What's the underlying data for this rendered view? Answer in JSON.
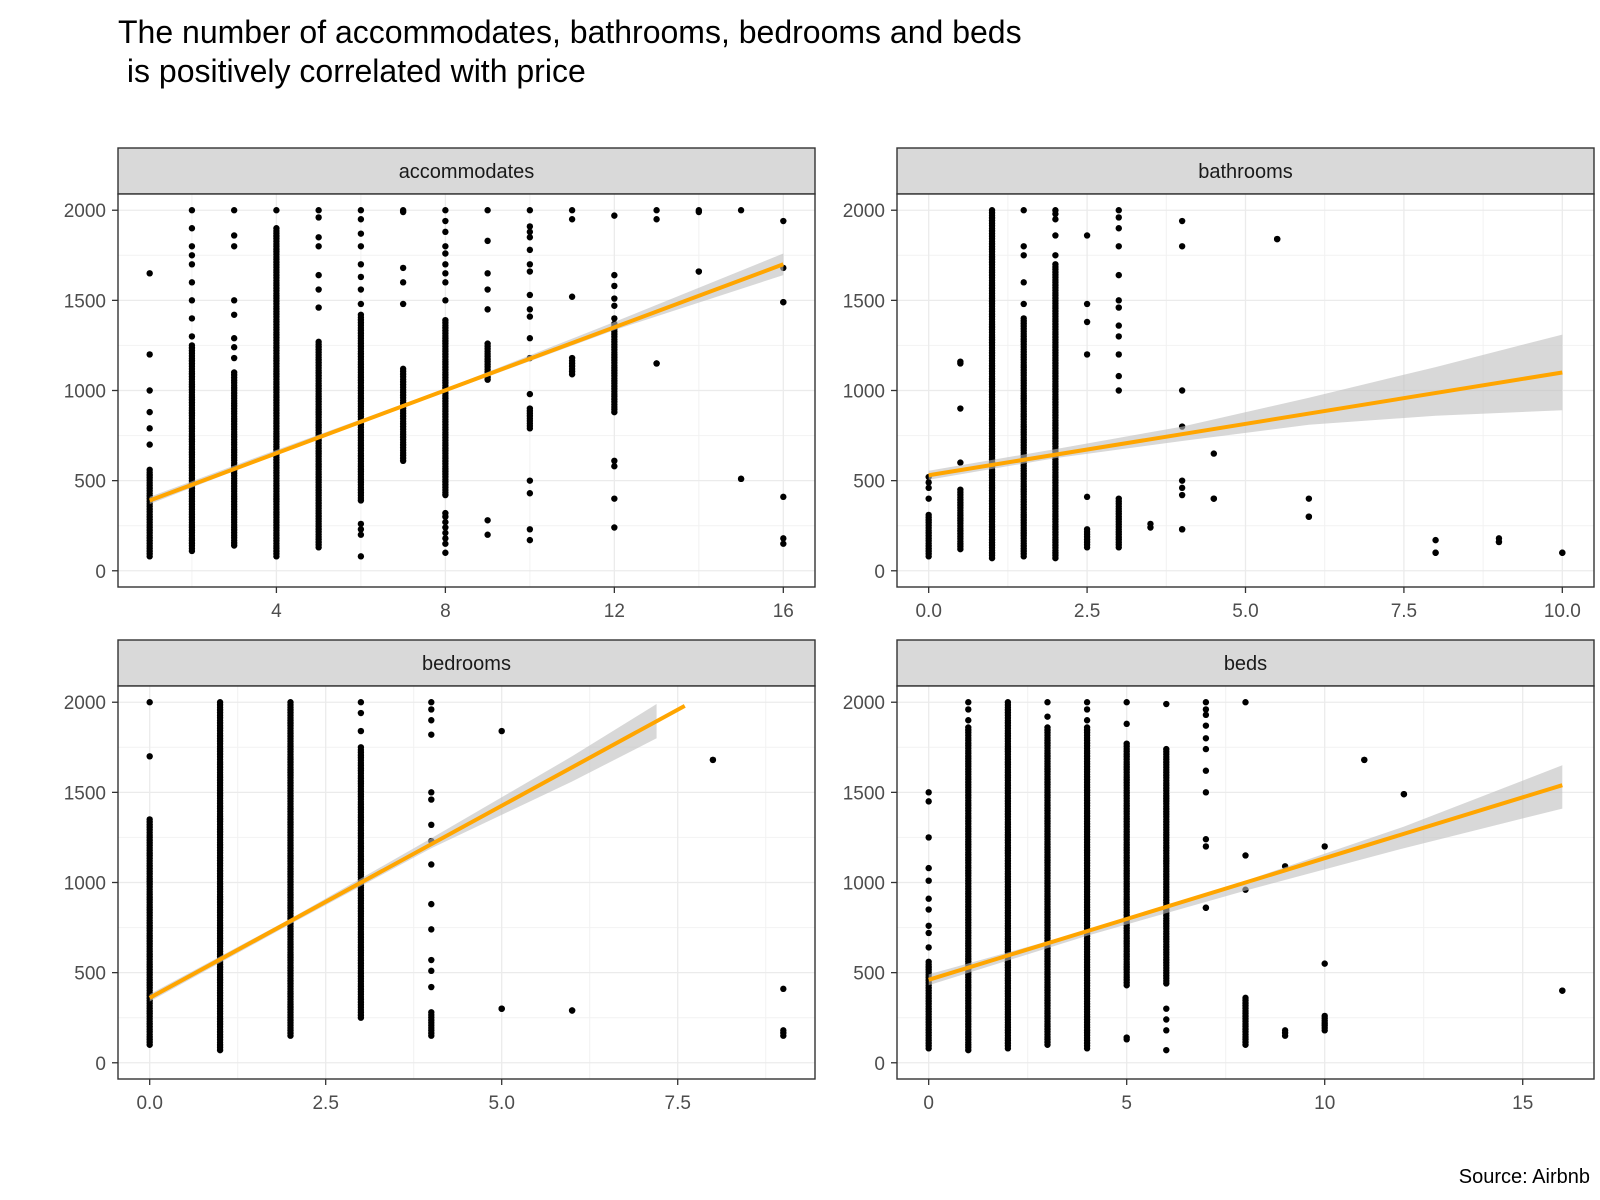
{
  "chart_data": {
    "type": "scatter",
    "title_line1": "The number of accommodates, bathrooms, bedrooms and beds",
    "title_line2": " is positively correlated with price",
    "caption": "Source: Airbnb",
    "ylim": [
      0,
      2000
    ],
    "y_ticks": [
      0,
      500,
      1000,
      1500,
      2000
    ],
    "grid": "on",
    "point_color": "#000000",
    "fit_color": "#FFA500",
    "band_color": "#BEBEBE",
    "strip_color": "#D9D9D9",
    "panels": [
      {
        "facet": "accommodates",
        "xlim": [
          0.25,
          16.75
        ],
        "x_ticks": [
          4,
          8,
          12,
          16
        ],
        "x_tick_labels": [
          "4",
          "8",
          "12",
          "16"
        ],
        "fit": {
          "x": [
            1,
            16
          ],
          "y": [
            390,
            1700
          ]
        },
        "band": {
          "x": [
            1,
            4,
            8,
            12,
            16
          ],
          "upper": [
            410,
            670,
            1010,
            1380,
            1760
          ],
          "lower": [
            370,
            645,
            990,
            1335,
            1640
          ]
        },
        "columns": [
          {
            "x": 1,
            "from": 80,
            "to": 560,
            "extra": [
              700,
              790,
              880,
              1000,
              1200,
              1650
            ]
          },
          {
            "x": 2,
            "from": 110,
            "to": 1250,
            "extra": [
              1300,
              1400,
              1500,
              1600,
              1700,
              1750,
              1800,
              1900,
              2000
            ]
          },
          {
            "x": 3,
            "from": 140,
            "to": 1100,
            "extra": [
              1180,
              1240,
              1290,
              1420,
              1500,
              1800,
              1860,
              2000
            ]
          },
          {
            "x": 4,
            "from": 80,
            "to": 1900,
            "extra": [
              2000
            ]
          },
          {
            "x": 5,
            "from": 130,
            "to": 1270,
            "extra": [
              1460,
              1560,
              1640,
              1800,
              1850,
              1960,
              2000
            ]
          },
          {
            "x": 6,
            "from": 390,
            "to": 1420,
            "extra": [
              80,
              200,
              230,
              260,
              1480,
              1560,
              1630,
              1700,
              1800,
              1870,
              1950,
              2000
            ]
          },
          {
            "x": 7,
            "from": 610,
            "to": 1120,
            "extra": [
              1480,
              1600,
              1680,
              1990,
              2000
            ]
          },
          {
            "x": 8,
            "from": 420,
            "to": 1390,
            "extra": [
              100,
              150,
              180,
              210,
              240,
              270,
              300,
              320,
              1500,
              1600,
              1650,
              1700,
              1760,
              1800,
              1880,
              1940,
              2000
            ]
          },
          {
            "x": 9,
            "from": 1060,
            "to": 1260,
            "extra": [
              200,
              280,
              1450,
              1560,
              1650,
              1830,
              2000
            ]
          },
          {
            "x": 10,
            "from": 790,
            "to": 900,
            "extra": [
              170,
              230,
              430,
              500,
              980,
              1180,
              1290,
              1410,
              1450,
              1530,
              1660,
              1700,
              1780,
              1850,
              1880,
              1910,
              2000
            ]
          },
          {
            "x": 11,
            "from": 1090,
            "to": 1180,
            "extra": [
              1520,
              1950,
              2000
            ]
          },
          {
            "x": 12,
            "from": 880,
            "to": 1370,
            "extra": [
              240,
              400,
              580,
              610,
              1400,
              1470,
              1510,
              1580,
              1640,
              1970
            ]
          },
          {
            "x": 13,
            "from": 1150,
            "to": 1150,
            "extra": [
              1950,
              2000
            ]
          },
          {
            "x": 14,
            "from": 1660,
            "to": 1660,
            "extra": [
              1990,
              2000
            ]
          },
          {
            "x": 15,
            "from": 510,
            "to": 510,
            "extra": [
              2000
            ]
          },
          {
            "x": 16,
            "from": 1490,
            "to": 1490,
            "extra": [
              150,
              180,
              410,
              1680,
              1940
            ]
          }
        ]
      },
      {
        "facet": "bathrooms",
        "xlim": [
          -0.5,
          10.5
        ],
        "x_ticks": [
          0,
          2.5,
          5,
          7.5,
          10
        ],
        "x_tick_labels": [
          "0.0",
          "2.5",
          "5.0",
          "7.5",
          "10.0"
        ],
        "fit": {
          "x": [
            0,
            10
          ],
          "y": [
            530,
            1100
          ]
        },
        "band": {
          "x": [
            0,
            2,
            4,
            6,
            8,
            10
          ],
          "upper": [
            555,
            675,
            800,
            960,
            1130,
            1310
          ],
          "lower": [
            505,
            625,
            720,
            810,
            860,
            890
          ]
        },
        "columns": [
          {
            "x": 0,
            "from": 80,
            "to": 310,
            "extra": [
              400,
              460,
              490,
              520
            ]
          },
          {
            "x": 0.5,
            "from": 120,
            "to": 450,
            "extra": [
              600,
              900,
              1150,
              1160
            ]
          },
          {
            "x": 1,
            "from": 70,
            "to": 2000,
            "extra": []
          },
          {
            "x": 1.5,
            "from": 80,
            "to": 1400,
            "extra": [
              1480,
              1600,
              1750,
              1800,
              2000
            ]
          },
          {
            "x": 2,
            "from": 70,
            "to": 1700,
            "extra": [
              1750,
              1860,
              1950,
              1980,
              2000
            ]
          },
          {
            "x": 2.5,
            "from": 130,
            "to": 230,
            "extra": [
              410,
              1200,
              1380,
              1480,
              1860
            ]
          },
          {
            "x": 3,
            "from": 130,
            "to": 400,
            "extra": [
              1000,
              1080,
              1200,
              1300,
              1360,
              1460,
              1500,
              1640,
              1800,
              1900,
              1960,
              2000
            ]
          },
          {
            "x": 3.5,
            "from": 240,
            "to": 260,
            "extra": []
          },
          {
            "x": 4,
            "from": 230,
            "to": 230,
            "extra": [
              420,
              460,
              500,
              800,
              1000,
              1800,
              1940
            ]
          },
          {
            "x": 4.5,
            "from": 400,
            "to": 400,
            "extra": [
              650
            ]
          },
          {
            "x": 5.5,
            "from": 1840,
            "to": 1840,
            "extra": []
          },
          {
            "x": 6,
            "from": 300,
            "to": 300,
            "extra": [
              400
            ]
          },
          {
            "x": 8,
            "from": 100,
            "to": 100,
            "extra": [
              170
            ]
          },
          {
            "x": 9,
            "from": 160,
            "to": 160,
            "extra": [
              180
            ]
          },
          {
            "x": 10,
            "from": 100,
            "to": 100,
            "extra": []
          }
        ]
      },
      {
        "facet": "bedrooms",
        "xlim": [
          -0.45,
          9.45
        ],
        "x_ticks": [
          0,
          2.5,
          5,
          7.5
        ],
        "x_tick_labels": [
          "0.0",
          "2.5",
          "5.0",
          "7.5"
        ],
        "fit": {
          "x": [
            0,
            7.6
          ],
          "y": [
            360,
            1980
          ]
        },
        "band": {
          "x": [
            0,
            2,
            4,
            6,
            7.2
          ],
          "upper": [
            380,
            800,
            1245,
            1700,
            1990
          ],
          "lower": [
            340,
            770,
            1190,
            1560,
            1800
          ]
        },
        "columns": [
          {
            "x": 0,
            "from": 100,
            "to": 1350,
            "extra": [
              1700,
              2000
            ]
          },
          {
            "x": 1,
            "from": 70,
            "to": 2000,
            "extra": []
          },
          {
            "x": 2,
            "from": 150,
            "to": 2000,
            "extra": []
          },
          {
            "x": 3,
            "from": 250,
            "to": 1750,
            "extra": [
              1840,
              1940,
              2000
            ]
          },
          {
            "x": 4,
            "from": 150,
            "to": 280,
            "extra": [
              420,
              510,
              570,
              740,
              880,
              1100,
              1230,
              1320,
              1460,
              1500,
              1820,
              1900,
              1960,
              2000
            ]
          },
          {
            "x": 5,
            "from": 300,
            "to": 300,
            "extra": [
              1840
            ]
          },
          {
            "x": 6,
            "from": 290,
            "to": 290,
            "extra": []
          },
          {
            "x": 8,
            "from": 1680,
            "to": 1680,
            "extra": []
          },
          {
            "x": 9,
            "from": 150,
            "to": 180,
            "extra": [
              410
            ]
          }
        ]
      },
      {
        "facet": "beds",
        "xlim": [
          -0.8,
          16.8
        ],
        "x_ticks": [
          0,
          5,
          10,
          15
        ],
        "x_tick_labels": [
          "0",
          "5",
          "10",
          "15"
        ],
        "fit": {
          "x": [
            0,
            16
          ],
          "y": [
            460,
            1540
          ]
        },
        "band": {
          "x": [
            0,
            4,
            8,
            12,
            16
          ],
          "upper": [
            490,
            735,
            1010,
            1310,
            1650
          ],
          "lower": [
            430,
            705,
            955,
            1190,
            1410
          ]
        },
        "columns": [
          {
            "x": 0,
            "from": 80,
            "to": 560,
            "extra": [
              640,
              720,
              760,
              850,
              910,
              1010,
              1080,
              1250,
              1450,
              1500
            ]
          },
          {
            "x": 1,
            "from": 70,
            "to": 1860,
            "extra": [
              1900,
              1960,
              2000
            ]
          },
          {
            "x": 2,
            "from": 80,
            "to": 2000,
            "extra": []
          },
          {
            "x": 3,
            "from": 100,
            "to": 1860,
            "extra": [
              1920,
              2000
            ]
          },
          {
            "x": 4,
            "from": 80,
            "to": 1860,
            "extra": [
              1900,
              1960,
              2000
            ]
          },
          {
            "x": 5,
            "from": 430,
            "to": 1770,
            "extra": [
              130,
              140,
              1880,
              2000
            ]
          },
          {
            "x": 6,
            "from": 440,
            "to": 1740,
            "extra": [
              70,
              180,
              240,
              300,
              1990
            ]
          },
          {
            "x": 7,
            "from": 860,
            "to": 860,
            "extra": [
              1200,
              1240,
              1500,
              1620,
              1740,
              1800,
              1870,
              1930,
              1960,
              2000
            ]
          },
          {
            "x": 8,
            "from": 100,
            "to": 360,
            "extra": [
              960,
              1150,
              2000
            ]
          },
          {
            "x": 9,
            "from": 150,
            "to": 180,
            "extra": [
              1090
            ]
          },
          {
            "x": 10,
            "from": 180,
            "to": 260,
            "extra": [
              550,
              1200
            ]
          },
          {
            "x": 11,
            "from": 1680,
            "to": 1680,
            "extra": []
          },
          {
            "x": 12,
            "from": 1490,
            "to": 1490,
            "extra": []
          },
          {
            "x": 16,
            "from": 400,
            "to": 400,
            "extra": []
          }
        ]
      }
    ]
  }
}
